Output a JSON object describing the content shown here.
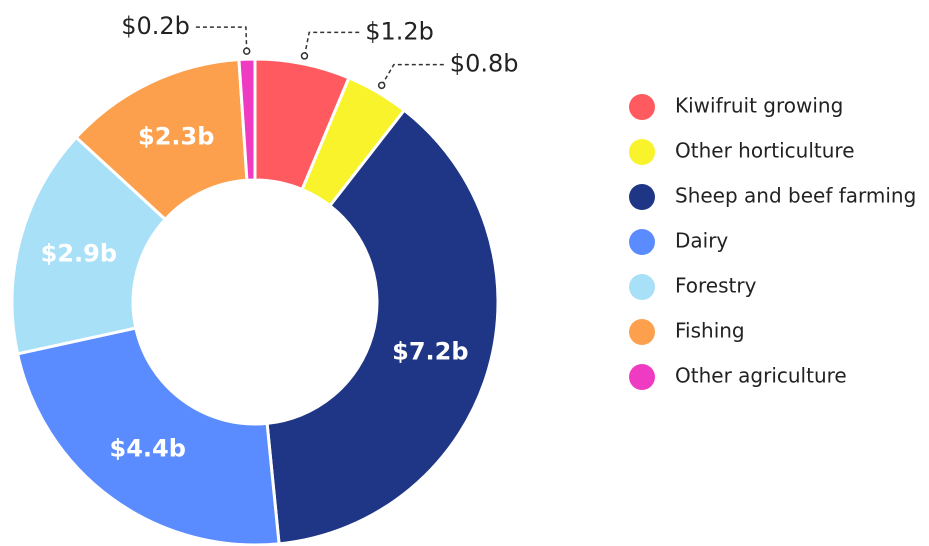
{
  "chart_data": {
    "type": "donut",
    "categories": [
      "Kiwifruit growing",
      "Other horticulture",
      "Sheep and beef farming",
      "Dairy",
      "Forestry",
      "Fishing",
      "Other agriculture"
    ],
    "values": [
      1.2,
      0.8,
      7.2,
      4.4,
      2.9,
      2.3,
      0.2
    ],
    "value_labels": [
      "$1.2b",
      "$0.8b",
      "$7.2b",
      "$4.4b",
      "$2.9b",
      "$2.3b",
      "$0.2b"
    ],
    "colors": [
      "#ff5a5f",
      "#f8f32b",
      "#1e3685",
      "#5b8cff",
      "#a8e0f7",
      "#fca04d",
      "#ef3bc1"
    ],
    "legend": "right"
  }
}
